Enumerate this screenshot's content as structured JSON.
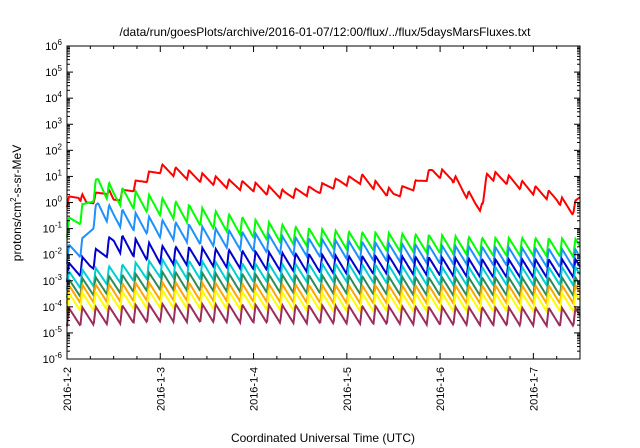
{
  "chart_data": {
    "type": "line",
    "title": "/data/run/goesPlots/archive/2016-01-07/12:00/flux/../flux/5daysMarsFluxes.txt",
    "xlabel": "Coordinated Universal Time (UTC)",
    "ylabel_main": "protons/cm",
    "ylabel_sup": "2",
    "ylabel_tail": "-s-sr-MeV",
    "y_scale": "log",
    "y_ticks": [
      {
        "base": "10",
        "exp": "-6"
      },
      {
        "base": "10",
        "exp": "-5"
      },
      {
        "base": "10",
        "exp": "-4"
      },
      {
        "base": "10",
        "exp": "-3"
      },
      {
        "base": "10",
        "exp": "-2"
      },
      {
        "base": "10",
        "exp": "-1"
      },
      {
        "base": "10",
        "exp": "0"
      },
      {
        "base": "10",
        "exp": "1"
      },
      {
        "base": "10",
        "exp": "2"
      },
      {
        "base": "10",
        "exp": "3"
      },
      {
        "base": "10",
        "exp": "4"
      },
      {
        "base": "10",
        "exp": "5"
      },
      {
        "base": "10",
        "exp": "6"
      }
    ],
    "ylim": [
      1e-06,
      1000000.0
    ],
    "xlim": [
      "2016-01-02",
      "2016-01-07 12:00"
    ],
    "x_ticks": [
      "2016-1-2",
      "2016-1-3",
      "2016-1-4",
      "2016-1-5",
      "2016-1-6",
      "2016-1-7"
    ],
    "grid": false,
    "legend": "none",
    "series": [
      {
        "color": "#ff0000",
        "points": [
          [
            "2016-01-02 00:00",
            1.0
          ],
          [
            "2016-01-02 03:00",
            2.0
          ],
          [
            "2016-01-02 05:00",
            0.9
          ],
          [
            "2016-01-02 10:00",
            3.0
          ],
          [
            "2016-01-02 12:00",
            1.2
          ],
          [
            "2016-01-02 20:00",
            8.0
          ],
          [
            "2016-01-03 00:00",
            20.0
          ],
          [
            "2016-01-03 12:00",
            8.0
          ],
          [
            "2016-01-03 18:00",
            5.0
          ],
          [
            "2016-01-04 00:00",
            4.0
          ],
          [
            "2016-01-04 08:00",
            2.0
          ],
          [
            "2016-01-04 16:00",
            3.0
          ],
          [
            "2016-01-04 22:00",
            6.0
          ],
          [
            "2016-01-05 04:00",
            8.0
          ],
          [
            "2016-01-05 08:00",
            4.0
          ],
          [
            "2016-01-05 12:00",
            2.0
          ],
          [
            "2016-01-05 18:00",
            5.0
          ],
          [
            "2016-01-05 22:00",
            15.0
          ],
          [
            "2016-01-06 03:00",
            10.0
          ],
          [
            "2016-01-06 06:00",
            3.0
          ],
          [
            "2016-01-06 09:00",
            1.0
          ],
          [
            "2016-01-06 11:00",
            0.6
          ],
          [
            "2016-01-06 12:00",
            12.0
          ],
          [
            "2016-01-06 18:00",
            7.0
          ],
          [
            "2016-01-07 00:00",
            3.0
          ],
          [
            "2016-01-07 06:00",
            1.5
          ],
          [
            "2016-01-07 10:00",
            0.5
          ],
          [
            "2016-01-07 12:00",
            1.5
          ]
        ]
      },
      {
        "color": "#00ff00",
        "points": [
          [
            "2016-01-02 00:00",
            0.1
          ],
          [
            "2016-01-02 04:00",
            0.4
          ],
          [
            "2016-01-02 08:00",
            5.0
          ],
          [
            "2016-01-02 12:00",
            2.0
          ],
          [
            "2016-01-03 00:00",
            0.7
          ],
          [
            "2016-01-03 12:00",
            0.25
          ],
          [
            "2016-01-04 00:00",
            0.1
          ],
          [
            "2016-01-04 12:00",
            0.05
          ],
          [
            "2016-01-05 00:00",
            0.035
          ],
          [
            "2016-01-05 12:00",
            0.03
          ],
          [
            "2016-01-06 00:00",
            0.025
          ],
          [
            "2016-01-06 12:00",
            0.02
          ],
          [
            "2016-01-07 00:00",
            0.02
          ],
          [
            "2016-01-07 12:00",
            0.018
          ]
        ]
      },
      {
        "color": "#1e90ff",
        "points": [
          [
            "2016-01-02 00:00",
            0.01
          ],
          [
            "2016-01-02 04:00",
            0.02
          ],
          [
            "2016-01-02 08:00",
            0.6
          ],
          [
            "2016-01-02 12:00",
            0.3
          ],
          [
            "2016-01-03 00:00",
            0.1
          ],
          [
            "2016-01-03 12:00",
            0.05
          ],
          [
            "2016-01-04 00:00",
            0.03
          ],
          [
            "2016-01-04 12:00",
            0.02
          ],
          [
            "2016-01-05 00:00",
            0.015
          ],
          [
            "2016-01-05 12:00",
            0.012
          ],
          [
            "2016-01-06 00:00",
            0.01
          ],
          [
            "2016-01-06 12:00",
            0.009
          ],
          [
            "2016-01-07 00:00",
            0.008
          ],
          [
            "2016-01-07 12:00",
            0.007
          ]
        ]
      },
      {
        "color": "#0000cd",
        "points": [
          [
            "2016-01-02 00:00",
            0.002
          ],
          [
            "2016-01-02 06:00",
            0.005
          ],
          [
            "2016-01-02 12:00",
            0.03
          ],
          [
            "2016-01-03 00:00",
            0.01
          ],
          [
            "2016-01-03 12:00",
            0.008
          ],
          [
            "2016-01-04 00:00",
            0.006
          ],
          [
            "2016-01-04 12:00",
            0.005
          ],
          [
            "2016-01-05 00:00",
            0.004
          ],
          [
            "2016-01-05 12:00",
            0.004
          ],
          [
            "2016-01-06 00:00",
            0.0035
          ],
          [
            "2016-01-06 12:00",
            0.003
          ],
          [
            "2016-01-07 00:00",
            0.003
          ],
          [
            "2016-01-07 12:00",
            0.003
          ]
        ]
      },
      {
        "color": "#00ced1",
        "points": [
          [
            "2016-01-02 00:00",
            0.001
          ],
          [
            "2016-01-03 00:00",
            0.003
          ],
          [
            "2016-01-04 00:00",
            0.002
          ],
          [
            "2016-01-05 00:00",
            0.002
          ],
          [
            "2016-01-06 00:00",
            0.0015
          ],
          [
            "2016-01-07 00:00",
            0.0015
          ],
          [
            "2016-01-07 12:00",
            0.0015
          ]
        ]
      },
      {
        "color": "#2e8b57",
        "points": [
          [
            "2016-01-02 00:00",
            0.0005
          ],
          [
            "2016-01-03 00:00",
            0.001
          ],
          [
            "2016-01-04 00:00",
            0.0008
          ],
          [
            "2016-01-05 00:00",
            0.0007
          ],
          [
            "2016-01-06 00:00",
            0.0006
          ],
          [
            "2016-01-07 12:00",
            0.0006
          ]
        ]
      },
      {
        "color": "#ffa500",
        "points": [
          [
            "2016-01-02 00:00",
            0.0003
          ],
          [
            "2016-01-03 00:00",
            0.0004
          ],
          [
            "2016-01-05 00:00",
            0.0003
          ],
          [
            "2016-01-07 12:00",
            0.0003
          ]
        ]
      },
      {
        "color": "#ffff00",
        "points": [
          [
            "2016-01-02 00:00",
            0.00015
          ],
          [
            "2016-01-03 00:00",
            0.0002
          ],
          [
            "2016-01-05 00:00",
            0.00015
          ],
          [
            "2016-01-07 12:00",
            0.00015
          ]
        ]
      },
      {
        "color": "#9b2d5c",
        "points": [
          [
            "2016-01-02 00:00",
            4e-05
          ],
          [
            "2016-01-03 00:00",
            6e-05
          ],
          [
            "2016-01-05 00:00",
            5e-05
          ],
          [
            "2016-01-07 12:00",
            4e-05
          ]
        ]
      }
    ]
  }
}
